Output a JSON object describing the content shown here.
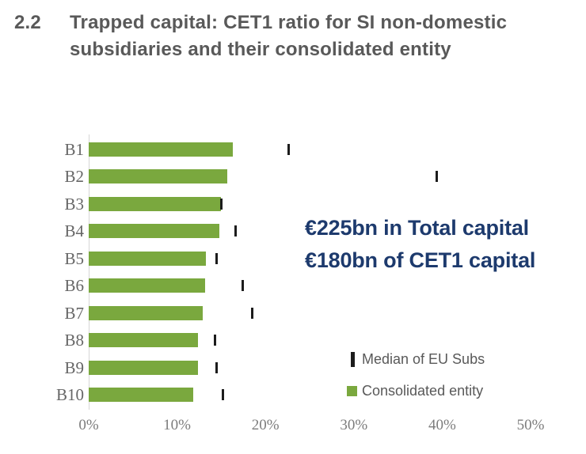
{
  "title": {
    "number": "2.2",
    "text": "Trapped capital: CET1 ratio for SI non-domestic subsidiaries and their consolidated entity"
  },
  "annotation": {
    "line1": "€225bn in Total capital",
    "line2": "€180bn of CET1 capital",
    "color": "#1d3a6d"
  },
  "legend": {
    "median": {
      "label": "Median of EU Subs",
      "marker": "black-vertical-tick",
      "color": "#1c1c1c"
    },
    "entity": {
      "label": "Consolidated entity",
      "marker": "green-square",
      "color": "#7aa83e"
    }
  },
  "colors": {
    "bar_green": "#7aa83e",
    "median_black": "#1c1c1c",
    "title_gray": "#595959",
    "annotation_navy": "#1d3a6d"
  },
  "chart_data": {
    "type": "bar",
    "orientation": "horizontal",
    "title": "Trapped capital: CET1 ratio for SI non-domestic subsidiaries and their consolidated entity",
    "categories": [
      "B1",
      "B2",
      "B3",
      "B4",
      "B5",
      "B6",
      "B7",
      "B8",
      "B9",
      "B10"
    ],
    "series": [
      {
        "name": "Consolidated entity",
        "style": "bar",
        "color": "#7aa83e",
        "values": [
          16.3,
          15.7,
          15.0,
          14.8,
          13.3,
          13.2,
          12.9,
          12.4,
          12.4,
          11.8
        ]
      },
      {
        "name": "Median of EU Subs",
        "style": "tick",
        "color": "#1c1c1c",
        "values": [
          22.6,
          39.4,
          15.0,
          16.6,
          14.5,
          17.4,
          18.5,
          14.3,
          14.5,
          15.2
        ]
      }
    ],
    "x_tick_labels": [
      "0%",
      "10%",
      "20%",
      "30%",
      "40%",
      "50%"
    ],
    "xlim": [
      0,
      50
    ],
    "unit": "percent",
    "grid": false,
    "legend_position": "bottom-right"
  }
}
